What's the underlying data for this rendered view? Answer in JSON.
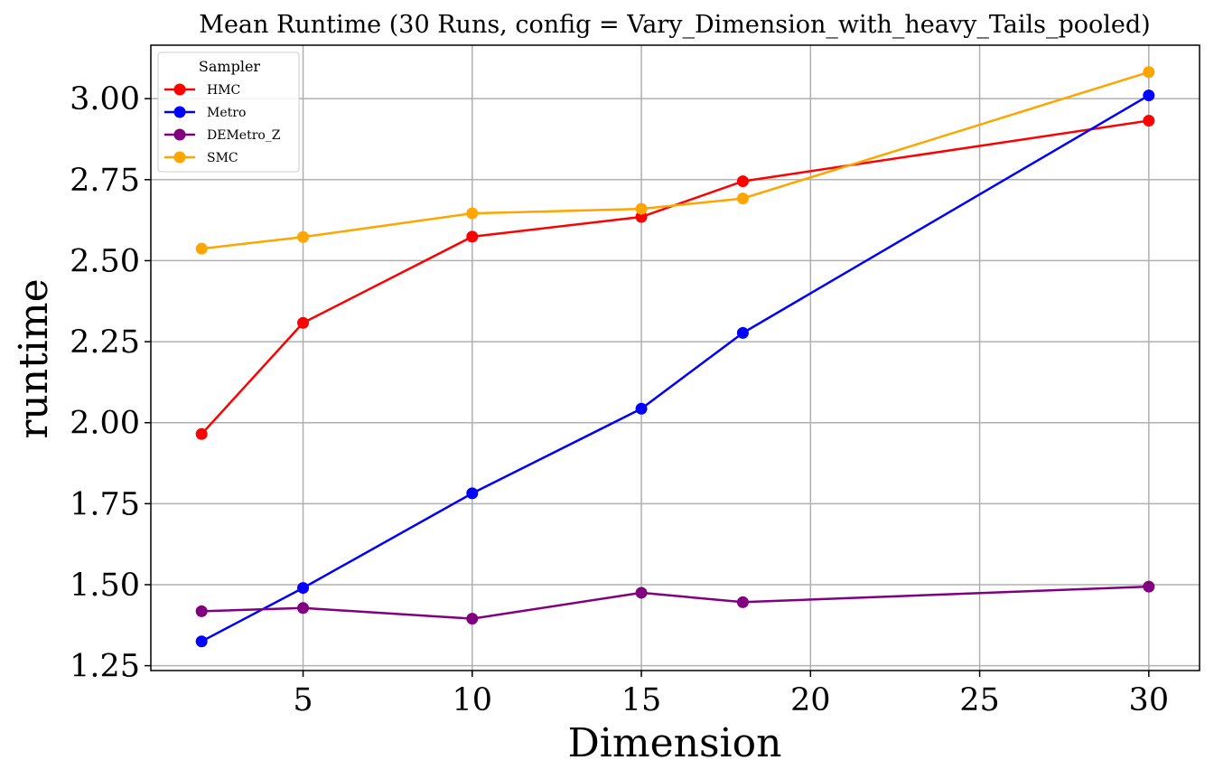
{
  "chart_data": {
    "type": "line",
    "title": "Mean Runtime (30 Runs, config = Vary_Dimension_with_heavy_Tails_pooled)",
    "xlabel": "Dimension",
    "ylabel": "runtime",
    "x": [
      2,
      5,
      10,
      15,
      18,
      30
    ],
    "xlim": [
      0.5,
      31.5
    ],
    "ylim": [
      1.235,
      3.165
    ],
    "xticks": [
      5,
      10,
      15,
      20,
      25,
      30
    ],
    "xtick_labels": [
      "5",
      "10",
      "15",
      "20",
      "25",
      "30"
    ],
    "yticks": [
      1.25,
      1.5,
      1.75,
      2.0,
      2.25,
      2.5,
      2.75,
      3.0
    ],
    "ytick_labels": [
      "1.25",
      "1.50",
      "1.75",
      "2.00",
      "2.25",
      "2.50",
      "2.75",
      "3.00"
    ],
    "grid": true,
    "legend": {
      "title": "Sampler",
      "placement": "top-left"
    },
    "series": [
      {
        "name": "HMC",
        "color": "#ff0000",
        "values": [
          1.965,
          2.308,
          2.574,
          2.635,
          2.745,
          2.932
        ]
      },
      {
        "name": "Metro",
        "color": "#0000ff",
        "values": [
          1.325,
          1.49,
          1.782,
          2.043,
          2.277,
          3.01
        ]
      },
      {
        "name": "DEMetro_Z",
        "color": "#800080",
        "values": [
          1.418,
          1.428,
          1.395,
          1.475,
          1.446,
          1.494
        ]
      },
      {
        "name": "SMC",
        "color": "#ffa500",
        "values": [
          2.537,
          2.573,
          2.646,
          2.66,
          2.692,
          3.082
        ]
      }
    ]
  }
}
